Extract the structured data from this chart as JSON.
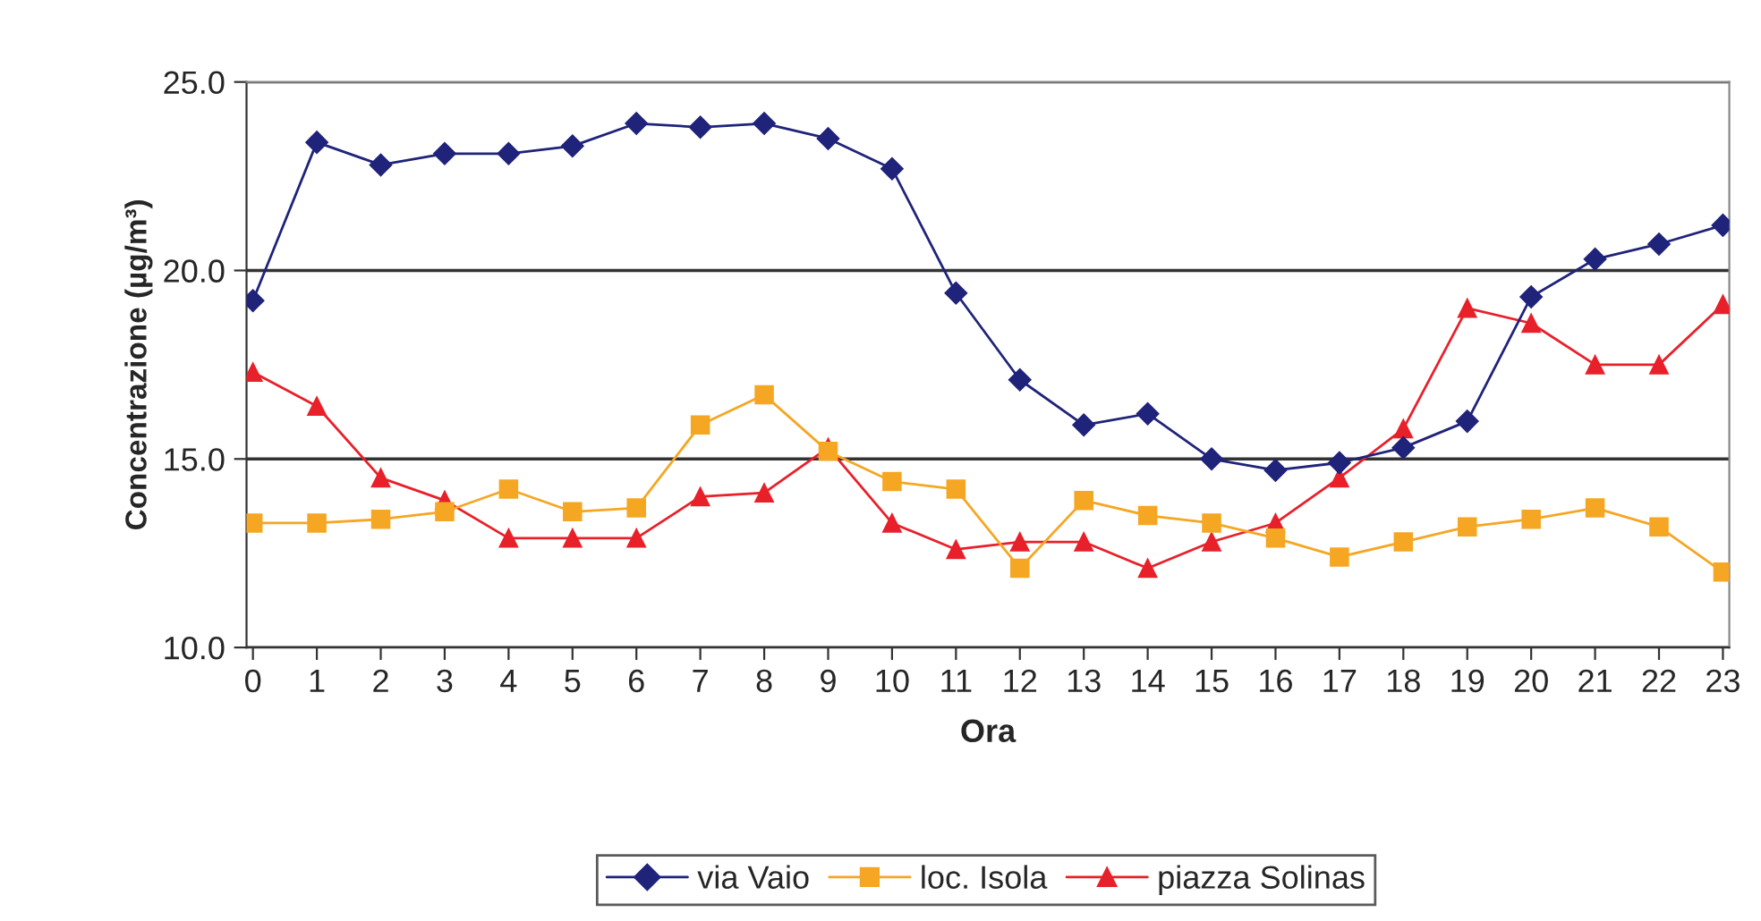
{
  "chart_data": {
    "type": "line",
    "xlabel": "Ora",
    "ylabel": "Concentrazione (µg/m³)",
    "categories": [
      "0",
      "1",
      "2",
      "3",
      "4",
      "5",
      "6",
      "7",
      "8",
      "9",
      "10",
      "11",
      "12",
      "13",
      "14",
      "15",
      "16",
      "17",
      "18",
      "19",
      "20",
      "21",
      "22",
      "23"
    ],
    "series": [
      {
        "name": "via Vaio",
        "color": "#1f237a",
        "marker": "diamond",
        "values": [
          19.2,
          23.4,
          22.8,
          23.1,
          23.1,
          23.3,
          23.9,
          23.8,
          23.9,
          23.5,
          22.7,
          19.4,
          17.1,
          15.9,
          16.2,
          15.0,
          14.7,
          14.9,
          15.3,
          16.0,
          19.3,
          20.3,
          20.7,
          21.2
        ]
      },
      {
        "name": "loc. Isola",
        "color": "#f5a623",
        "marker": "square",
        "values": [
          13.3,
          13.3,
          13.4,
          13.6,
          14.2,
          13.6,
          13.7,
          15.9,
          16.7,
          15.2,
          14.4,
          14.2,
          12.1,
          13.9,
          13.5,
          13.3,
          12.9,
          12.4,
          12.8,
          13.2,
          13.4,
          13.7,
          13.2,
          12.0
        ]
      },
      {
        "name": "piazza Solinas",
        "color": "#e8202a",
        "marker": "triangle",
        "values": [
          17.3,
          16.4,
          14.5,
          13.9,
          12.9,
          12.9,
          12.9,
          14.0,
          14.1,
          15.3,
          13.3,
          12.6,
          12.8,
          12.8,
          12.1,
          12.8,
          13.3,
          14.5,
          15.8,
          19.0,
          18.6,
          17.5,
          17.5,
          19.1
        ]
      }
    ],
    "ylim": [
      10.0,
      25.0
    ],
    "yticks": [
      {
        "value": 10,
        "label": "10.0"
      },
      {
        "value": 15,
        "label": "15.0"
      },
      {
        "value": 20,
        "label": "20.0"
      },
      {
        "value": 25,
        "label": "25.0"
      }
    ],
    "grid": "y",
    "legend": "bottom",
    "line_style": "solid"
  }
}
